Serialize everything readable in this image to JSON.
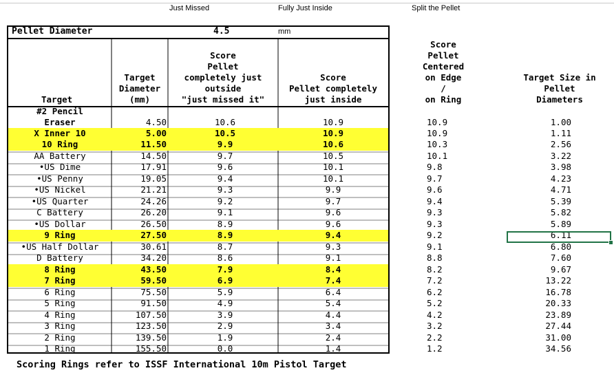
{
  "top_labels": {
    "just_missed": "Just Missed",
    "fully_inside": "Fully Just Inside",
    "split": "Split the Pellet"
  },
  "pellet": {
    "label": "Pellet Diameter",
    "value": "4.5",
    "unit": "mm"
  },
  "headers": {
    "target": "Target",
    "diameter": "Target\nDiameter\n(mm)",
    "outside": "Score\nPellet\ncompletely just\noutside\n\"just missed it\"",
    "inside": "Score\nPellet completely\njust inside",
    "centered": "Score\nPellet\nCentered\non Edge\n/\non Ring",
    "size": "Target Size in\nPellet\nDiameters"
  },
  "rows": [
    {
      "target": "#2 Pencil Eraser",
      "diameter": "4.50",
      "outside": "10.6",
      "inside": "10.9",
      "centered": "10.9",
      "size": "1.00",
      "hl": false,
      "bold": false
    },
    {
      "target": "X Inner 10",
      "diameter": "5.00",
      "outside": "10.5",
      "inside": "10.9",
      "centered": "10.9",
      "size": "1.11",
      "hl": true,
      "bold": true
    },
    {
      "target": "10 Ring",
      "diameter": "11.50",
      "outside": "9.9",
      "inside": "10.6",
      "centered": "10.3",
      "size": "2.56",
      "hl": true,
      "bold": true
    },
    {
      "target": "AA Battery",
      "diameter": "14.50",
      "outside": "9.7",
      "inside": "10.5",
      "centered": "10.1",
      "size": "3.22",
      "hl": false,
      "bold": false
    },
    {
      "target": "•US Dime",
      "diameter": "17.91",
      "outside": "9.6",
      "inside": "10.1",
      "centered": "9.8",
      "size": "3.98",
      "hl": false,
      "bold": false
    },
    {
      "target": "•US Penny",
      "diameter": "19.05",
      "outside": "9.4",
      "inside": "10.1",
      "centered": "9.7",
      "size": "4.23",
      "hl": false,
      "bold": false
    },
    {
      "target": "•US Nickel",
      "diameter": "21.21",
      "outside": "9.3",
      "inside": "9.9",
      "centered": "9.6",
      "size": "4.71",
      "hl": false,
      "bold": false
    },
    {
      "target": "•US Quarter",
      "diameter": "24.26",
      "outside": "9.2",
      "inside": "9.7",
      "centered": "9.4",
      "size": "5.39",
      "hl": false,
      "bold": false
    },
    {
      "target": "C Battery",
      "diameter": "26.20",
      "outside": "9.1",
      "inside": "9.6",
      "centered": "9.3",
      "size": "5.82",
      "hl": false,
      "bold": false
    },
    {
      "target": "•US Dollar",
      "diameter": "26.50",
      "outside": "8.9",
      "inside": "9.6",
      "centered": "9.3",
      "size": "5.89",
      "hl": false,
      "bold": false
    },
    {
      "target": "9 Ring",
      "diameter": "27.50",
      "outside": "8.9",
      "inside": "9.4",
      "centered": "9.2",
      "size": "6.11",
      "hl": true,
      "bold": true
    },
    {
      "target": "•US Half Dollar",
      "diameter": "30.61",
      "outside": "8.7",
      "inside": "9.3",
      "centered": "9.1",
      "size": "6.80",
      "hl": false,
      "bold": false
    },
    {
      "target": "D Battery",
      "diameter": "34.20",
      "outside": "8.6",
      "inside": "9.1",
      "centered": "8.8",
      "size": "7.60",
      "hl": false,
      "bold": false
    },
    {
      "target": "8 Ring",
      "diameter": "43.50",
      "outside": "7.9",
      "inside": "8.4",
      "centered": "8.2",
      "size": "9.67",
      "hl": true,
      "bold": true
    },
    {
      "target": "7 Ring",
      "diameter": "59.50",
      "outside": "6.9",
      "inside": "7.4",
      "centered": "7.2",
      "size": "13.22",
      "hl": true,
      "bold": true
    },
    {
      "target": "6 Ring",
      "diameter": "75.50",
      "outside": "5.9",
      "inside": "6.4",
      "centered": "6.2",
      "size": "16.78",
      "hl": false,
      "bold": false
    },
    {
      "target": "5 Ring",
      "diameter": "91.50",
      "outside": "4.9",
      "inside": "5.4",
      "centered": "5.2",
      "size": "20.33",
      "hl": false,
      "bold": false
    },
    {
      "target": "4 Ring",
      "diameter": "107.50",
      "outside": "3.9",
      "inside": "4.4",
      "centered": "4.2",
      "size": "23.89",
      "hl": false,
      "bold": false
    },
    {
      "target": "3 Ring",
      "diameter": "123.50",
      "outside": "2.9",
      "inside": "3.4",
      "centered": "3.2",
      "size": "27.44",
      "hl": false,
      "bold": false
    },
    {
      "target": "2 Ring",
      "diameter": "139.50",
      "outside": "1.9",
      "inside": "2.4",
      "centered": "2.2",
      "size": "31.00",
      "hl": false,
      "bold": false
    },
    {
      "target": "1 Ring",
      "diameter": "155.50",
      "outside": "0.0",
      "inside": "1.4",
      "centered": "1.2",
      "size": "34.56",
      "hl": false,
      "bold": false
    }
  ],
  "footer": "Scoring Rings refer to ISSF International 10m Pistol Target",
  "colors": {
    "highlight": "#ffff33",
    "selection": "#217346"
  }
}
